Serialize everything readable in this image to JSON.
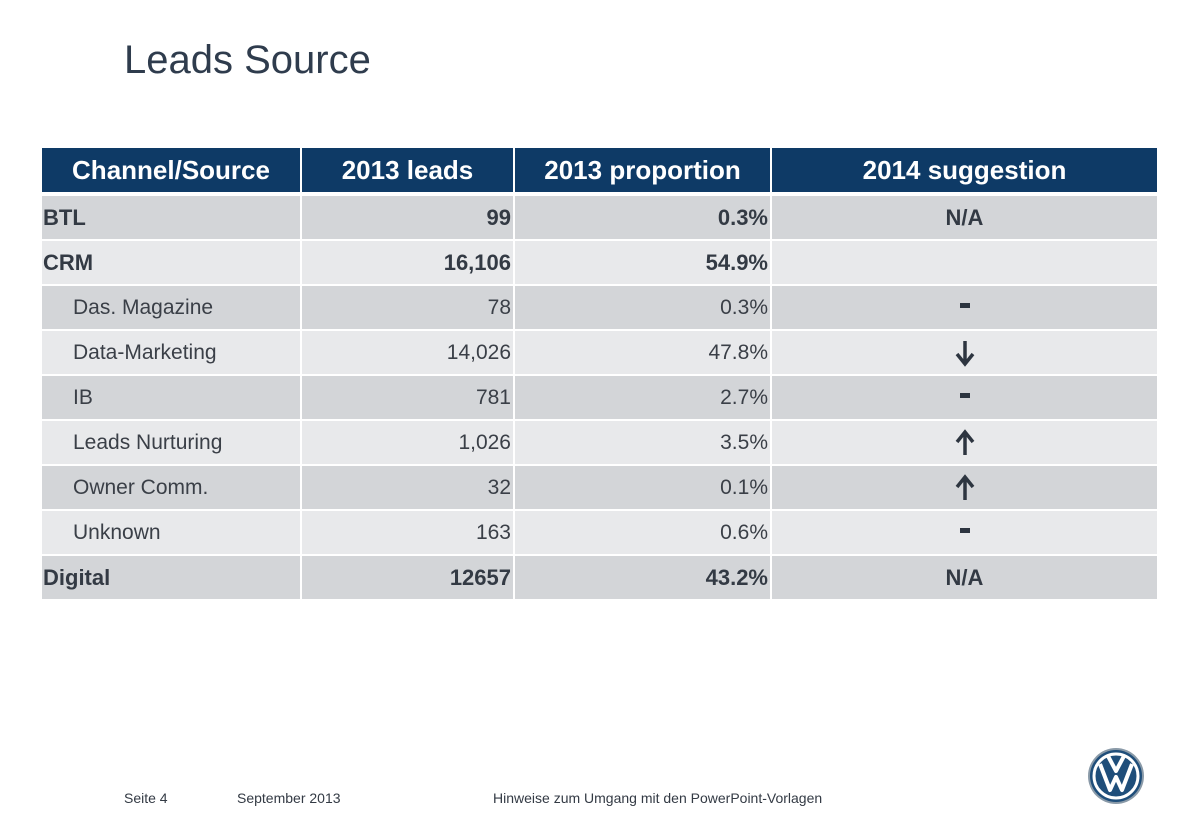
{
  "page": {
    "title": "Leads Source"
  },
  "table": {
    "headers": [
      "Channel/Source",
      "2013  leads",
      "2013 proportion",
      "2014 suggestion"
    ],
    "rows": [
      {
        "channel": "BTL",
        "leads": "99",
        "proportion": "0.3%",
        "suggestion": "N/A",
        "suggestion_icon": "",
        "level": "group"
      },
      {
        "channel": "CRM",
        "leads": "16,106",
        "proportion": "54.9%",
        "suggestion": "",
        "suggestion_icon": "",
        "level": "group"
      },
      {
        "channel": "Das. Magazine",
        "leads": "78",
        "proportion": "0.3%",
        "suggestion": "",
        "suggestion_icon": "dash-icon",
        "level": "sub"
      },
      {
        "channel": "Data-Marketing",
        "leads": "14,026",
        "proportion": "47.8%",
        "suggestion": "",
        "suggestion_icon": "arrow-down-icon",
        "level": "sub"
      },
      {
        "channel": "IB",
        "leads": "781",
        "proportion": "2.7%",
        "suggestion": "",
        "suggestion_icon": "dash-icon",
        "level": "sub"
      },
      {
        "channel": "Leads Nurturing",
        "leads": "1,026",
        "proportion": "3.5%",
        "suggestion": "",
        "suggestion_icon": "arrow-up-icon",
        "level": "sub"
      },
      {
        "channel": "Owner Comm.",
        "leads": "32",
        "proportion": "0.1%",
        "suggestion": "",
        "suggestion_icon": "arrow-up-icon",
        "level": "sub"
      },
      {
        "channel": "Unknown",
        "leads": "163",
        "proportion": "0.6%",
        "suggestion": "",
        "suggestion_icon": "dash-icon",
        "level": "sub"
      },
      {
        "channel": "Digital",
        "leads": "12657",
        "proportion": "43.2%",
        "suggestion": "N/A",
        "suggestion_icon": "",
        "level": "group"
      }
    ]
  },
  "footer": {
    "page_label": "Seite 4",
    "date": "September 2013",
    "note": "Hinweise zum Umgang mit den PowerPoint-Vorlagen"
  },
  "colors": {
    "header_bg": "#0e3a66",
    "row_dark": "#d3d5d8",
    "row_light": "#e8e9eb",
    "text": "#333a44"
  }
}
